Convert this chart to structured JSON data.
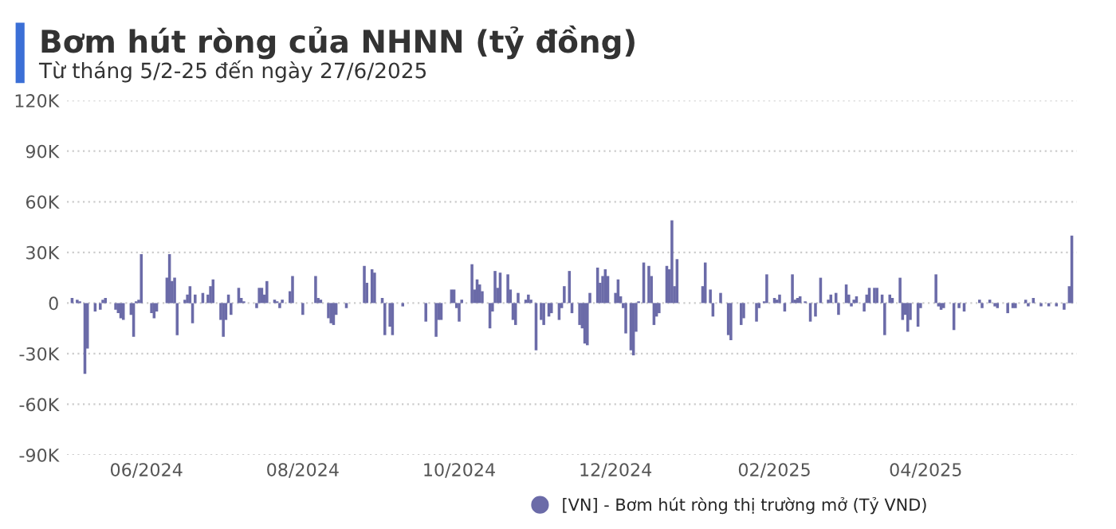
{
  "chart_data": {
    "type": "bar",
    "title": "Bơm hút ròng của NHNN (tỷ đồng)",
    "subtitle": "Từ tháng 5/2-25 đến ngày 27/6/2025",
    "x": [
      "2024-05-03",
      "2024-05-05",
      "2024-05-06",
      "2024-05-08",
      "2024-05-09",
      "2024-05-12",
      "2024-05-14",
      "2024-05-15",
      "2024-05-16",
      "2024-05-20",
      "2024-05-21",
      "2024-05-22",
      "2024-05-23",
      "2024-05-26",
      "2024-05-27",
      "2024-05-28",
      "2024-05-29",
      "2024-05-30",
      "2024-06-03",
      "2024-06-04",
      "2024-06-05",
      "2024-06-09",
      "2024-06-10",
      "2024-06-11",
      "2024-06-12",
      "2024-06-13",
      "2024-06-16",
      "2024-06-17",
      "2024-06-18",
      "2024-06-19",
      "2024-06-20",
      "2024-06-23",
      "2024-06-25",
      "2024-06-26",
      "2024-06-27",
      "2024-06-30",
      "2024-07-01",
      "2024-07-02",
      "2024-07-03",
      "2024-07-04",
      "2024-07-07",
      "2024-07-08",
      "2024-07-09",
      "2024-07-14",
      "2024-07-15",
      "2024-07-16",
      "2024-07-17",
      "2024-07-18",
      "2024-07-21",
      "2024-07-22",
      "2024-07-23",
      "2024-07-24",
      "2024-07-27",
      "2024-07-28",
      "2024-08-01",
      "2024-08-06",
      "2024-08-07",
      "2024-08-08",
      "2024-08-11",
      "2024-08-12",
      "2024-08-13",
      "2024-08-14",
      "2024-08-18",
      "2024-08-25",
      "2024-08-26",
      "2024-08-28",
      "2024-08-29",
      "2024-09-01",
      "2024-09-02",
      "2024-09-04",
      "2024-09-05",
      "2024-09-09",
      "2024-09-18",
      "2024-09-22",
      "2024-09-23",
      "2024-09-24",
      "2024-09-28",
      "2024-09-29",
      "2024-09-30",
      "2024-10-01",
      "2024-10-02",
      "2024-10-06",
      "2024-10-07",
      "2024-10-08",
      "2024-10-09",
      "2024-10-10",
      "2024-10-13",
      "2024-10-14",
      "2024-10-15",
      "2024-10-16",
      "2024-10-17",
      "2024-10-20",
      "2024-10-21",
      "2024-10-22",
      "2024-10-23",
      "2024-10-24",
      "2024-10-27",
      "2024-10-28",
      "2024-10-29",
      "2024-10-31",
      "2024-11-02",
      "2024-11-03",
      "2024-11-05",
      "2024-11-06",
      "2024-11-09",
      "2024-11-10",
      "2024-11-11",
      "2024-11-13",
      "2024-11-14",
      "2024-11-17",
      "2024-11-18",
      "2024-11-19",
      "2024-11-20",
      "2024-11-21",
      "2024-11-24",
      "2024-11-25",
      "2024-11-26",
      "2024-11-27",
      "2024-11-28",
      "2024-12-01",
      "2024-12-02",
      "2024-12-03",
      "2024-12-04",
      "2024-12-05",
      "2024-12-07",
      "2024-12-08",
      "2024-12-09",
      "2024-12-10",
      "2024-12-12",
      "2024-12-14",
      "2024-12-15",
      "2024-12-16",
      "2024-12-17",
      "2024-12-18",
      "2024-12-21",
      "2024-12-22",
      "2024-12-23",
      "2024-12-24",
      "2024-12-25",
      "2025-01-04",
      "2025-01-05",
      "2025-01-07",
      "2025-01-08",
      "2025-01-11",
      "2025-01-14",
      "2025-01-15",
      "2025-01-19",
      "2025-01-20",
      "2025-01-25",
      "2025-01-26",
      "2025-01-28",
      "2025-01-29",
      "2025-02-01",
      "2025-02-02",
      "2025-02-03",
      "2025-02-05",
      "2025-02-08",
      "2025-02-09",
      "2025-02-10",
      "2025-02-11",
      "2025-02-13",
      "2025-02-15",
      "2025-02-17",
      "2025-02-19",
      "2025-02-22",
      "2025-02-23",
      "2025-02-25",
      "2025-02-26",
      "2025-03-01",
      "2025-03-02",
      "2025-03-03",
      "2025-03-04",
      "2025-03-05",
      "2025-03-08",
      "2025-03-09",
      "2025-03-10",
      "2025-03-12",
      "2025-03-13",
      "2025-03-15",
      "2025-03-16",
      "2025-03-18",
      "2025-03-19",
      "2025-03-22",
      "2025-03-23",
      "2025-03-24",
      "2025-03-25",
      "2025-03-26",
      "2025-03-29",
      "2025-03-30",
      "2025-04-05",
      "2025-04-06",
      "2025-04-07",
      "2025-04-08",
      "2025-04-12",
      "2025-04-14",
      "2025-04-16",
      "2025-04-22",
      "2025-04-23",
      "2025-04-26",
      "2025-04-28",
      "2025-04-29",
      "2025-05-03",
      "2025-05-05",
      "2025-05-06",
      "2025-05-10",
      "2025-05-11",
      "2025-05-13",
      "2025-05-16",
      "2025-05-19",
      "2025-05-22",
      "2025-05-25",
      "2025-05-27",
      "2025-05-28"
    ],
    "series": [
      {
        "name": "[VN] - Bơm hút ròng thị trường mở (Tỷ VND)",
        "color": "#6b6ba8",
        "values": [
          3000,
          2000,
          1000,
          -42000,
          -27000,
          -5000,
          -4000,
          2000,
          3000,
          -4000,
          -6000,
          -9000,
          -10000,
          -7000,
          -20000,
          1000,
          2000,
          29000,
          -6000,
          -9000,
          -5000,
          15000,
          29000,
          13000,
          15000,
          -19000,
          2000,
          5000,
          10000,
          -12000,
          5000,
          6000,
          5000,
          10000,
          14000,
          -10000,
          -20000,
          -10000,
          5000,
          -7000,
          9000,
          3000,
          1000,
          -3000,
          9000,
          9000,
          5000,
          13000,
          2000,
          1000,
          -3000,
          2000,
          7000,
          16000,
          -7000,
          16000,
          3000,
          2000,
          -9000,
          -12000,
          -13000,
          -7000,
          -3000,
          22000,
          12000,
          20000,
          18000,
          3000,
          -19000,
          -14000,
          -19000,
          -2000,
          -11000,
          -20000,
          -10000,
          -10000,
          8000,
          8000,
          -3000,
          -11000,
          2000,
          23000,
          8000,
          14000,
          11000,
          7000,
          -15000,
          -5000,
          19000,
          9000,
          18000,
          17000,
          8000,
          -10000,
          -13000,
          6000,
          2000,
          5000,
          2000,
          -28000,
          -10000,
          -13000,
          -8000,
          -6000,
          -10000,
          -3000,
          10000,
          19000,
          -6000,
          -13000,
          -15000,
          -24000,
          -25000,
          6000,
          21000,
          12000,
          16000,
          20000,
          16000,
          6000,
          14000,
          4000,
          -3000,
          -18000,
          -28000,
          -31000,
          -17000,
          1000,
          24000,
          22000,
          16000,
          -13000,
          -8000,
          -6000,
          22000,
          20000,
          49000,
          10000,
          26000,
          10000,
          24000,
          8000,
          -8000,
          6000,
          -19000,
          -22000,
          -13000,
          -9000,
          -11000,
          -3000,
          1000,
          17000,
          3000,
          2000,
          5000,
          -5000,
          17000,
          2000,
          3000,
          4000,
          1000,
          -11000,
          -8000,
          15000,
          2000,
          5000,
          6000,
          -7000,
          11000,
          5000,
          -2000,
          2000,
          4000,
          -5000,
          5000,
          9000,
          9000,
          9000,
          5000,
          -19000,
          5000,
          3000,
          15000,
          -10000,
          -7000,
          -17000,
          -10000,
          -14000,
          -3000,
          17000,
          -2000,
          -4000,
          -3000,
          -16000,
          -3000,
          -5000,
          2000,
          -3000,
          2000,
          -2000,
          -3000,
          -6000,
          -3000,
          -3000,
          2000,
          -2000,
          3000,
          -2000,
          -2000,
          -2000,
          -4000,
          10000,
          40000
        ]
      }
    ],
    "xlim": [
      "2024-05-01",
      "2025-05-30"
    ],
    "xticks": [
      {
        "value": "2024-06-01",
        "label": "06/2024"
      },
      {
        "value": "2024-08-01",
        "label": "08/2024"
      },
      {
        "value": "2024-10-01",
        "label": "10/2024"
      },
      {
        "value": "2024-12-01",
        "label": "12/2024"
      },
      {
        "value": "2025-02-01",
        "label": "02/2025"
      },
      {
        "value": "2025-04-01",
        "label": "04/2025"
      }
    ],
    "ylim": [
      -90000,
      120000
    ],
    "yticks": [
      {
        "value": -90000,
        "label": "-90K"
      },
      {
        "value": -60000,
        "label": "-60K"
      },
      {
        "value": -30000,
        "label": "-30K"
      },
      {
        "value": 0,
        "label": "0"
      },
      {
        "value": 30000,
        "label": "30K"
      },
      {
        "value": 60000,
        "label": "60K"
      },
      {
        "value": 90000,
        "label": "90K"
      },
      {
        "value": 120000,
        "label": "120K"
      }
    ],
    "grid": "y",
    "legend": "bottom"
  }
}
